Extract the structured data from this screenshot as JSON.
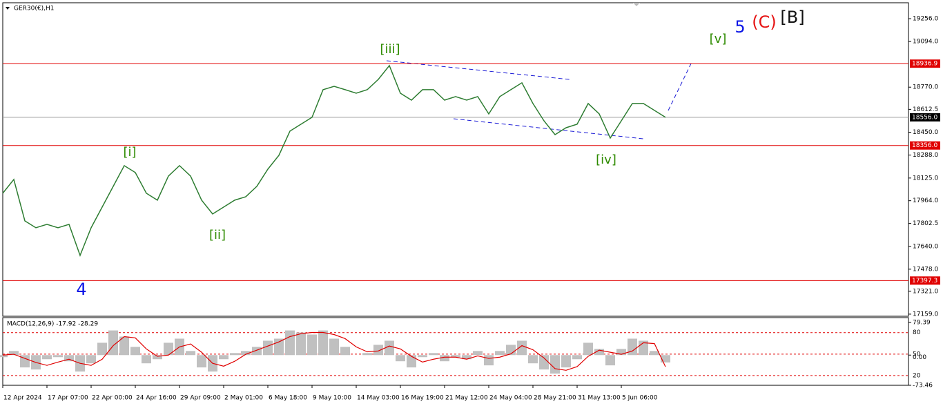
{
  "chart_data": [
    {
      "type": "line",
      "title": "GER30(€),H1",
      "categories": [
        "12 Apr 2024",
        null,
        null,
        null,
        "17 Apr 07:00",
        null,
        null,
        null,
        "22 Apr 00:00",
        null,
        null,
        null,
        "24 Apr 16:00",
        null,
        null,
        null,
        "29 Apr 09:00",
        null,
        null,
        null,
        "2 May 01:00",
        null,
        null,
        null,
        "6 May 18:00",
        null,
        null,
        null,
        "9 May 10:00",
        null,
        null,
        null,
        "14 May 03:00",
        null,
        null,
        null,
        "16 May 19:00",
        null,
        null,
        null,
        "21 May 12:00",
        null,
        null,
        null,
        "24 May 04:00",
        null,
        null,
        null,
        "28 May 21:00",
        null,
        null,
        null,
        "31 May 13:00",
        null,
        null,
        null,
        "5 Jun 06:00",
        null,
        null,
        null,
        null
      ],
      "values": [
        18017,
        18115,
        17821,
        17772,
        17796,
        17772,
        17796,
        17576,
        17772,
        17919,
        18066,
        18213,
        18164,
        18017,
        17968,
        18139,
        18213,
        18139,
        17968,
        17870,
        17919,
        17968,
        17992,
        18066,
        18188,
        18286,
        18458,
        18507,
        18556,
        18752,
        18776,
        18752,
        18727,
        18752,
        18825,
        18923,
        18727,
        18678,
        18752,
        18752,
        18678,
        18703,
        18678,
        18703,
        18580,
        18703,
        18752,
        18801,
        18654,
        18531,
        18433,
        18482,
        18507,
        18654,
        18580,
        18409,
        18531,
        18654,
        18654,
        18605,
        18556
      ],
      "color": "#2e7d32",
      "ylim": [
        17144,
        19369
      ],
      "yticks": [
        {
          "value": 19256,
          "label": "19256.0"
        },
        {
          "value": 19094,
          "label": "19094.0"
        },
        {
          "value": 18770,
          "label": "18770.0"
        },
        {
          "value": 18612.5,
          "label": "18612.5"
        },
        {
          "value": 18450,
          "label": "18450.0"
        },
        {
          "value": 18288,
          "label": "18288.0"
        },
        {
          "value": 18125,
          "label": "18125.0"
        },
        {
          "value": 17964,
          "label": "17964.0"
        },
        {
          "value": 17802.5,
          "label": "17802.5"
        },
        {
          "value": 17640,
          "label": "17640.0"
        },
        {
          "value": 17478,
          "label": "17478.0"
        },
        {
          "value": 17321,
          "label": "17321.0"
        },
        {
          "value": 17159,
          "label": "17159.0"
        }
      ],
      "levels": [
        {
          "value": 18936.9,
          "label": "18936.9",
          "color": "#e00000"
        },
        {
          "value": 18556,
          "label": "18556.0",
          "color": "#9e9e9e"
        },
        {
          "value": 18356,
          "label": "18356.0",
          "color": "#e00000"
        },
        {
          "value": 17397.3,
          "label": "17397.3",
          "color": "#e00000"
        }
      ],
      "annotations": [
        {
          "text": "[iii]",
          "color": "#2e8b00"
        },
        {
          "text": "[i]",
          "color": "#2e8b00"
        },
        {
          "text": "[ii]",
          "color": "#2e8b00"
        },
        {
          "text": "[iv]",
          "color": "#2e8b00"
        },
        {
          "text": "[v]",
          "color": "#2e8b00"
        },
        {
          "text": "4",
          "color": "#0a14e6"
        },
        {
          "text": "5",
          "color": "#0a14e6"
        },
        {
          "text": "(C)",
          "color": "#e61414"
        },
        {
          "text": "[B]",
          "color": "#111111"
        }
      ]
    },
    {
      "type": "macd",
      "title": "MACD(12,26,9) -17.92 -28.29",
      "values": [
        -5,
        10,
        -30,
        -35,
        -10,
        -5,
        -15,
        -40,
        -20,
        30,
        60,
        45,
        20,
        -20,
        -10,
        30,
        40,
        10,
        -30,
        -40,
        -10,
        5,
        10,
        20,
        35,
        40,
        60,
        55,
        50,
        60,
        40,
        20,
        0,
        5,
        25,
        35,
        -15,
        -30,
        -5,
        5,
        -15,
        -5,
        -10,
        10,
        -25,
        10,
        25,
        35,
        -20,
        -35,
        -45,
        -30,
        -10,
        30,
        15,
        -25,
        15,
        40,
        35,
        10,
        -17.92
      ],
      "signal": [
        0,
        2,
        -8,
        -18,
        -25,
        -17,
        -10,
        -20,
        -25,
        -10,
        23,
        45,
        42,
        15,
        -3,
        0,
        20,
        27,
        7,
        -20,
        -27,
        -15,
        2,
        12,
        22,
        32,
        45,
        52,
        55,
        55,
        50,
        40,
        20,
        8,
        10,
        22,
        15,
        -3,
        -17,
        -10,
        -5,
        -5,
        -10,
        -2,
        -8,
        -5,
        3,
        23,
        13,
        -7,
        -33,
        -37,
        -28,
        -3,
        12,
        7,
        2,
        10,
        30,
        28,
        -28.29
      ],
      "color": "#c0c0c0",
      "signal_color": "#e00000",
      "ylim": [
        -73.46,
        89.5
      ],
      "yticks": [
        79.39,
        {
          "value": 0,
          "label": "0.00"
        },
        -73.46
      ],
      "y2lim": [
        6.4,
        100
      ],
      "y2ticks": [
        80,
        50,
        20
      ]
    }
  ]
}
